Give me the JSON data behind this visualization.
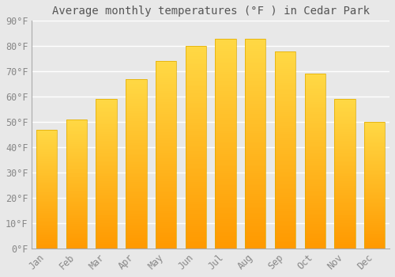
{
  "title": "Average monthly temperatures (°F ) in Cedar Park",
  "months": [
    "Jan",
    "Feb",
    "Mar",
    "Apr",
    "May",
    "Jun",
    "Jul",
    "Aug",
    "Sep",
    "Oct",
    "Nov",
    "Dec"
  ],
  "values": [
    47,
    51,
    59,
    67,
    74,
    80,
    83,
    83,
    78,
    69,
    59,
    50
  ],
  "bar_color_top": "#FFCC44",
  "bar_color_bottom": "#FF9900",
  "bar_edge_color": "#DDAA00",
  "background_color": "#E8E8E8",
  "plot_bg_color": "#E8E8E8",
  "grid_color": "#FFFFFF",
  "ylim": [
    0,
    90
  ],
  "yticks": [
    0,
    10,
    20,
    30,
    40,
    50,
    60,
    70,
    80,
    90
  ],
  "title_fontsize": 10,
  "tick_fontsize": 8.5,
  "tick_color": "#888888",
  "title_color": "#555555",
  "font_family": "monospace",
  "bar_width": 0.7
}
